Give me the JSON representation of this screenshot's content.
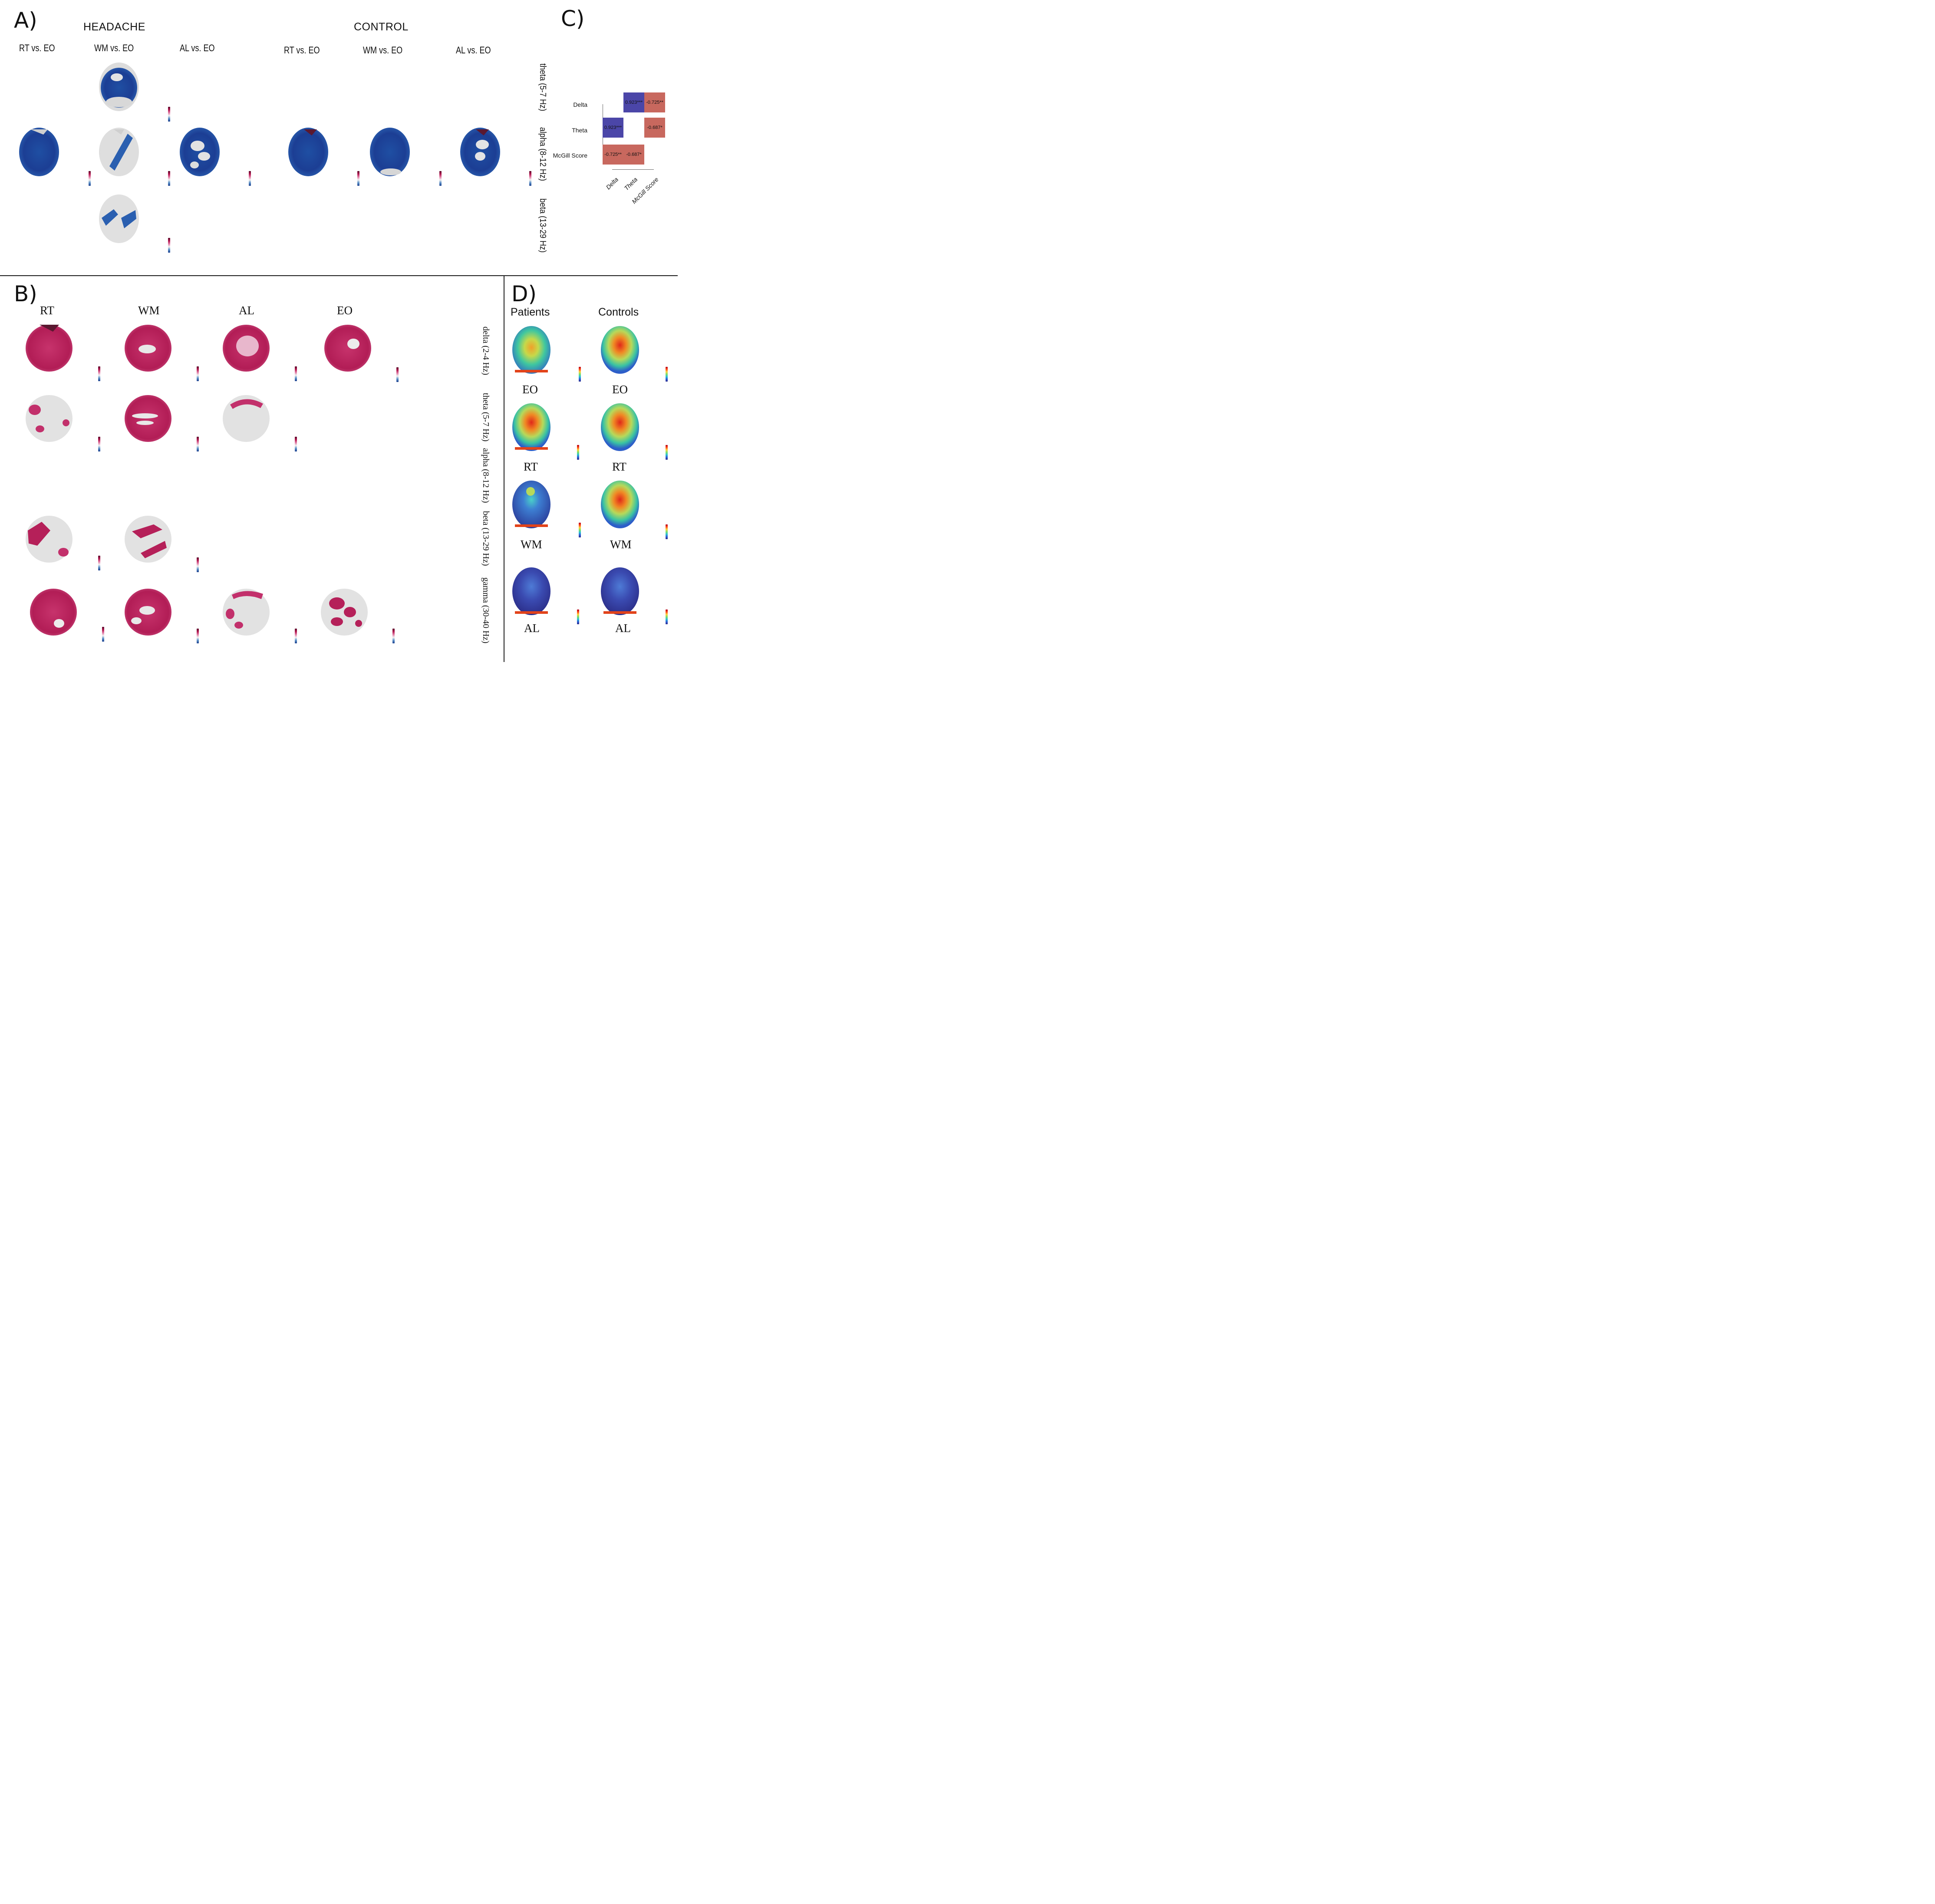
{
  "panelA": {
    "letter": "A)",
    "groups": {
      "headache": "HEADACHE",
      "control": "CONTROL"
    },
    "columns": [
      "RT vs. EO",
      "WM vs. EO",
      "AL vs. EO",
      "RT vs. EO",
      "WM vs. EO",
      "AL vs. EO"
    ],
    "bands": [
      "theta (5-7 Hz)",
      "alpha (8-12 Hz)",
      "beta (13-29 Hz)"
    ]
  },
  "panelB": {
    "letter": "B)",
    "columns": [
      "RT",
      "WM",
      "AL",
      "EO"
    ],
    "bands": [
      "delta (2-4 Hz)",
      "theta (5-7 Hz)",
      "alpha (8-12 Hz)",
      "beta (13-29 Hz)",
      "gamma (30-40 Hz)"
    ]
  },
  "panelC": {
    "letter": "C)",
    "chart_data": {
      "type": "heatmap",
      "title": "",
      "rows": [
        "Delta",
        "Theta",
        "McGill Score"
      ],
      "columns": [
        "Delta",
        "Theta",
        "McGill Score"
      ],
      "cells": [
        {
          "row": "Delta",
          "col": "Theta",
          "label": "0.923***",
          "value": 0.923
        },
        {
          "row": "Delta",
          "col": "McGill Score",
          "label": "-0.725**",
          "value": -0.725
        },
        {
          "row": "Theta",
          "col": "Delta",
          "label": "0.923***",
          "value": 0.923
        },
        {
          "row": "Theta",
          "col": "McGill Score",
          "label": "-0.687*",
          "value": -0.687
        },
        {
          "row": "McGill Score",
          "col": "Delta",
          "label": "-0.725**",
          "value": -0.725
        },
        {
          "row": "McGill Score",
          "col": "Theta",
          "label": "-0.687*",
          "value": -0.687
        }
      ]
    }
  },
  "panelD": {
    "letter": "D)",
    "columns": [
      "Patients",
      "Controls"
    ],
    "rows": [
      "EO",
      "RT",
      "WM",
      "AL"
    ]
  },
  "colors": {
    "diverging_high": "#a8164a",
    "diverging_low": "#1b3f8e",
    "positive_corr": "#4b46a8",
    "negative_corr": "#c8685e"
  }
}
